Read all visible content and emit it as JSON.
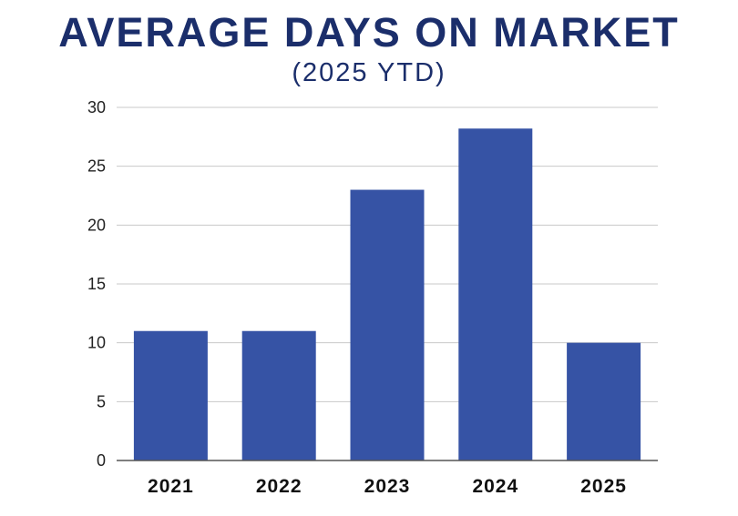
{
  "chart_data": {
    "type": "bar",
    "title": "AVERAGE DAYS ON MARKET",
    "subtitle": "(2025 YTD)",
    "categories": [
      "2021",
      "2022",
      "2023",
      "2024",
      "2025"
    ],
    "values": [
      11,
      11,
      23,
      28.2,
      10
    ],
    "xlabel": "",
    "ylabel": "",
    "ylim": [
      0,
      30
    ],
    "yticks": [
      "0",
      "5",
      "10",
      "15",
      "20",
      "25",
      "30"
    ],
    "grid": true,
    "legend": "none",
    "bar_color": "#3653a5",
    "title_color": "#1b2e6b",
    "grid_color": "#c8c8c8"
  }
}
